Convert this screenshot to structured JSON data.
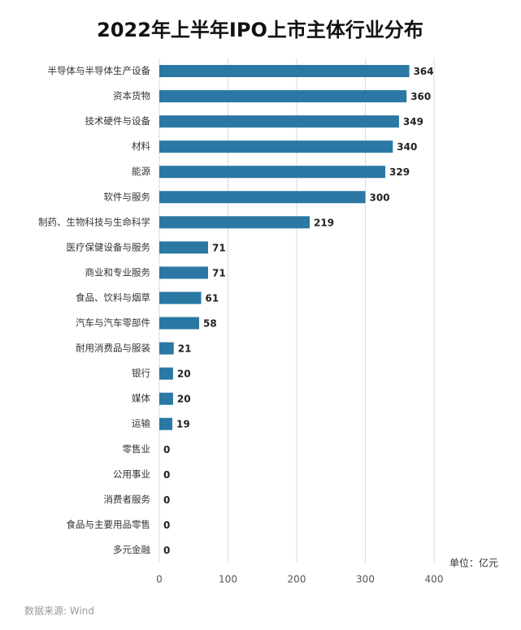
{
  "chart_data": {
    "type": "bar",
    "orientation": "horizontal",
    "title": "2022年上半年IPO上市主体行业分布",
    "unit_label": "单位：亿元",
    "source": "数据来源: Wind",
    "categories": [
      "半导体与半导体生产设备",
      "资本货物",
      "技术硬件与设备",
      "材料",
      "能源",
      "软件与服务",
      "制药、生物科技与生命科学",
      "医疗保健设备与服务",
      "商业和专业服务",
      "食品、饮料与烟草",
      "汽车与汽车零部件",
      "耐用消费品与服装",
      "银行",
      "媒体",
      "运输",
      "零售业",
      "公用事业",
      "消费者服务",
      "食品与主要用品零售",
      "多元金融"
    ],
    "values": [
      364,
      360,
      349,
      340,
      329,
      300,
      219,
      71,
      71,
      61,
      58,
      21,
      20,
      20,
      19,
      0,
      0,
      0,
      0,
      0
    ],
    "color": "#2a78a3",
    "xlim": [
      0,
      400
    ],
    "xticks": [
      0,
      100,
      200,
      300,
      400
    ],
    "grid": true
  }
}
